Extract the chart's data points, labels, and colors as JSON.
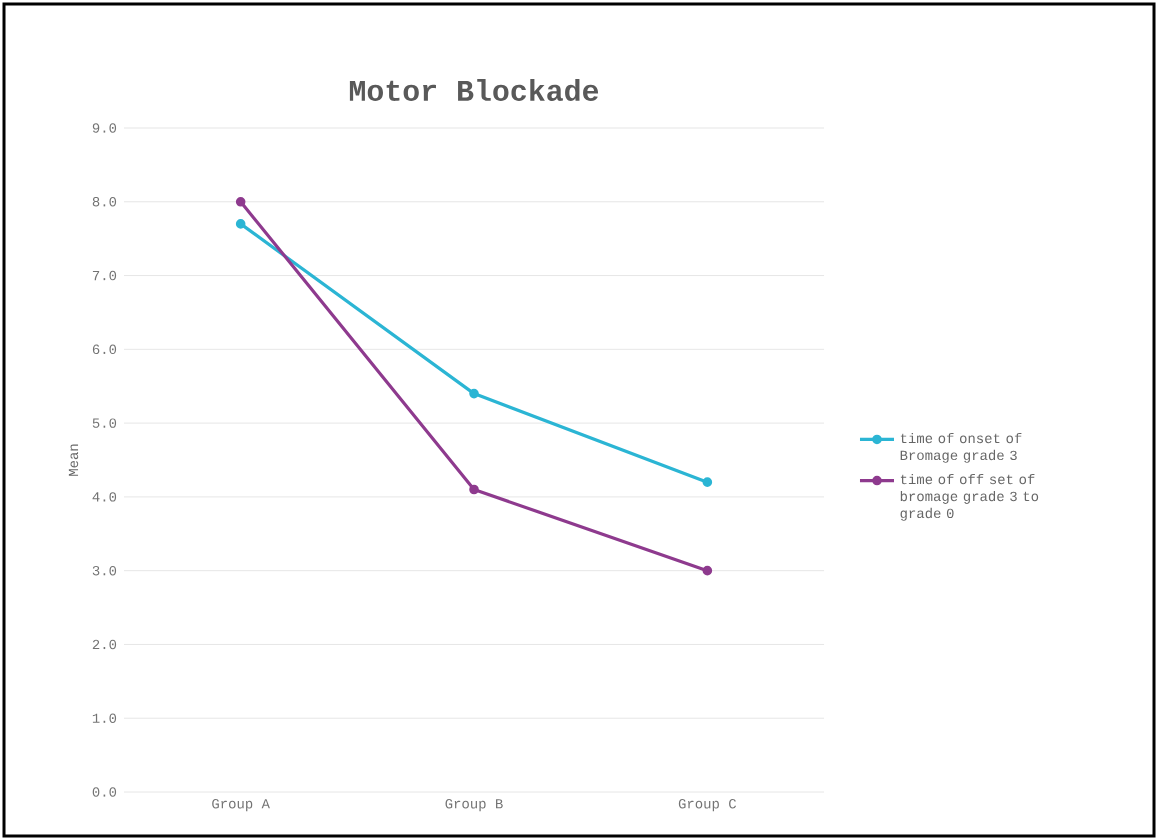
{
  "chart_data": {
    "type": "line",
    "title": "Motor Blockade",
    "ylabel": "Mean",
    "categories": [
      "Group A",
      "Group B",
      "Group C"
    ],
    "series": [
      {
        "name": "time of onset of Bromage grade 3",
        "color": "#2bb5d4",
        "values": [
          7.7,
          5.4,
          4.2
        ]
      },
      {
        "name": "time of off set of bromage grade 3 to grade 0",
        "color": "#8e3a8e",
        "values": [
          8.0,
          4.1,
          3.0
        ]
      }
    ],
    "ylim": [
      0,
      9
    ],
    "yticks": [
      {
        "value": 0,
        "label": "0.0"
      },
      {
        "value": 1,
        "label": "1.0"
      },
      {
        "value": 2,
        "label": "2.0"
      },
      {
        "value": 3,
        "label": "3.0"
      },
      {
        "value": 4,
        "label": "4.0"
      },
      {
        "value": 5,
        "label": "5.0"
      },
      {
        "value": 6,
        "label": "6.0"
      },
      {
        "value": 7,
        "label": "7.0"
      },
      {
        "value": 8,
        "label": "8.0"
      },
      {
        "value": 9,
        "label": "9.0"
      }
    ],
    "grid": "y",
    "legend": "right",
    "marker": "circle",
    "line_style": "solid"
  }
}
